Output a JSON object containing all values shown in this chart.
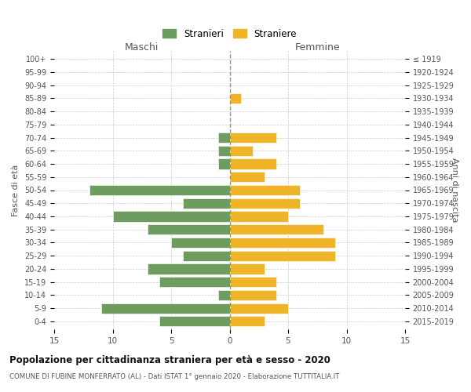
{
  "age_groups": [
    "0-4",
    "5-9",
    "10-14",
    "15-19",
    "20-24",
    "25-29",
    "30-34",
    "35-39",
    "40-44",
    "45-49",
    "50-54",
    "55-59",
    "60-64",
    "65-69",
    "70-74",
    "75-79",
    "80-84",
    "85-89",
    "90-94",
    "95-99",
    "100+"
  ],
  "birth_years": [
    "2015-2019",
    "2010-2014",
    "2005-2009",
    "2000-2004",
    "1995-1999",
    "1990-1994",
    "1985-1989",
    "1980-1984",
    "1975-1979",
    "1970-1974",
    "1965-1969",
    "1960-1964",
    "1955-1959",
    "1950-1954",
    "1945-1949",
    "1940-1944",
    "1935-1939",
    "1930-1934",
    "1925-1929",
    "1920-1924",
    "≤ 1919"
  ],
  "males": [
    6,
    11,
    1,
    6,
    7,
    4,
    5,
    7,
    10,
    4,
    12,
    0,
    1,
    1,
    1,
    0,
    0,
    0,
    0,
    0,
    0
  ],
  "females": [
    3,
    5,
    4,
    4,
    3,
    9,
    9,
    8,
    5,
    6,
    6,
    3,
    4,
    2,
    4,
    0,
    0,
    1,
    0,
    0,
    0
  ],
  "male_color": "#6e9b5e",
  "female_color": "#f0b429",
  "title": "Popolazione per cittadinanza straniera per età e sesso - 2020",
  "subtitle": "COMUNE DI FUBINE MONFERRATO (AL) - Dati ISTAT 1° gennaio 2020 - Elaborazione TUTTITALIA.IT",
  "legend_male": "Stranieri",
  "legend_female": "Straniere",
  "xlabel_left": "Maschi",
  "xlabel_right": "Femmine",
  "ylabel_left": "Fasce di età",
  "ylabel_right": "Anni di nascita",
  "xlim": 15,
  "background_color": "#ffffff",
  "grid_color": "#cccccc"
}
